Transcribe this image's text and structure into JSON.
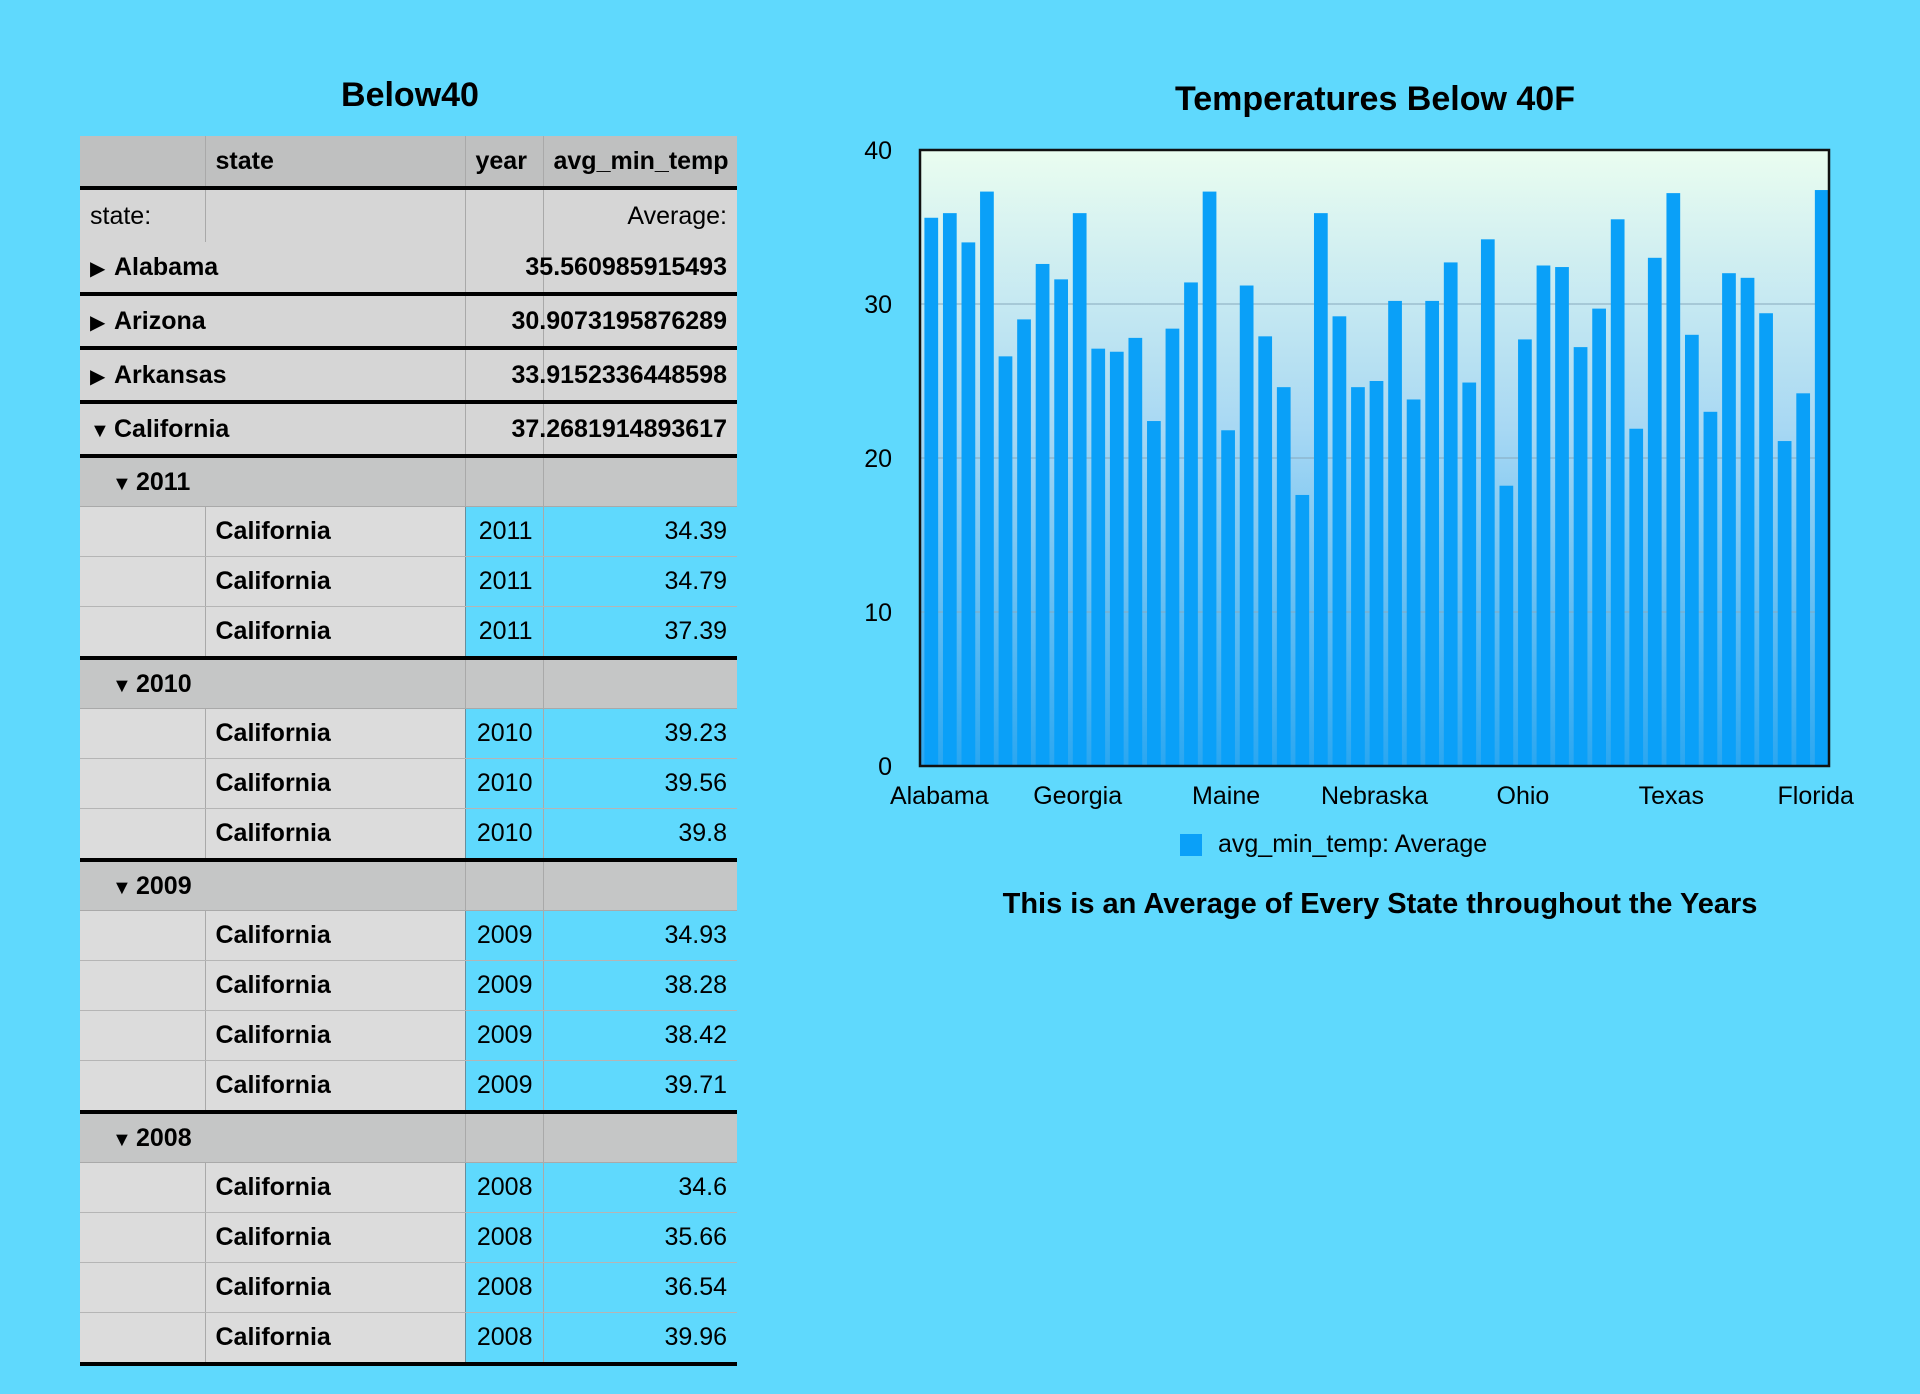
{
  "table": {
    "title": "Below40",
    "columns": [
      "",
      "state",
      "year",
      "avg_min_temp"
    ],
    "subheader": {
      "left": "state:",
      "right": "Average:"
    },
    "collapsed_states": [
      {
        "name": "Alabama",
        "avg": "35.560985915493"
      },
      {
        "name": "Arizona",
        "avg": "30.9073195876289"
      },
      {
        "name": "Arkansas",
        "avg": "33.9152336448598"
      }
    ],
    "expanded_state": {
      "name": "California",
      "avg": "37.2681914893617"
    },
    "year_groups": [
      {
        "year": "2011",
        "rows": [
          {
            "state": "California",
            "year": "2011",
            "value": "34.39"
          },
          {
            "state": "California",
            "year": "2011",
            "value": "34.79"
          },
          {
            "state": "California",
            "year": "2011",
            "value": "37.39"
          }
        ]
      },
      {
        "year": "2010",
        "rows": [
          {
            "state": "California",
            "year": "2010",
            "value": "39.23"
          },
          {
            "state": "California",
            "year": "2010",
            "value": "39.56"
          },
          {
            "state": "California",
            "year": "2010",
            "value": "39.8"
          }
        ]
      },
      {
        "year": "2009",
        "rows": [
          {
            "state": "California",
            "year": "2009",
            "value": "34.93"
          },
          {
            "state": "California",
            "year": "2009",
            "value": "38.28"
          },
          {
            "state": "California",
            "year": "2009",
            "value": "38.42"
          },
          {
            "state": "California",
            "year": "2009",
            "value": "39.71"
          }
        ]
      },
      {
        "year": "2008",
        "rows": [
          {
            "state": "California",
            "year": "2008",
            "value": "34.6"
          },
          {
            "state": "California",
            "year": "2008",
            "value": "35.66"
          },
          {
            "state": "California",
            "year": "2008",
            "value": "36.54"
          },
          {
            "state": "California",
            "year": "2008",
            "value": "39.96"
          }
        ]
      }
    ]
  },
  "chart_caption": "This is an Average of Every State throughout the Years",
  "chart_data": {
    "type": "bar",
    "title": "Temperatures Below 40F",
    "xlabel": "",
    "ylabel": "",
    "ylim": [
      0,
      40
    ],
    "yticks": [
      0,
      10,
      20,
      30,
      40
    ],
    "xtick_labels": [
      "Alabama",
      "Georgia",
      "Maine",
      "Nebraska",
      "Ohio",
      "Texas",
      "Florida"
    ],
    "legend": "avg_min_temp: Average",
    "legend_position": "bottom-center",
    "grid": true,
    "bar_color": "#0aa0f8",
    "values": [
      35.6,
      35.9,
      34.0,
      37.3,
      26.6,
      29.0,
      32.6,
      31.6,
      35.9,
      27.1,
      26.9,
      27.8,
      22.4,
      28.4,
      31.4,
      37.3,
      21.8,
      31.2,
      27.9,
      24.6,
      17.6,
      35.9,
      29.2,
      24.6,
      25.0,
      30.2,
      23.8,
      30.2,
      32.7,
      24.9,
      34.2,
      18.2,
      27.7,
      32.5,
      32.4,
      27.2,
      29.7,
      35.5,
      21.9,
      33.0,
      37.2,
      28.0,
      23.0,
      32.0,
      31.7,
      29.4,
      21.1,
      24.2,
      37.4
    ]
  }
}
